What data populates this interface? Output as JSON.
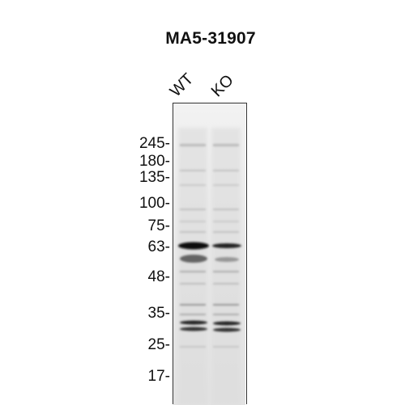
{
  "title": "MA5-31907",
  "lanes": [
    "WT",
    "KO"
  ],
  "markers": [
    {
      "label": "245-",
      "kda": 245
    },
    {
      "label": "180-",
      "kda": 180
    },
    {
      "label": "135-",
      "kda": 135
    },
    {
      "label": "100-",
      "kda": 100
    },
    {
      "label": "75-",
      "kda": 75
    },
    {
      "label": "63-",
      "kda": 63
    },
    {
      "label": "48-",
      "kda": 48
    },
    {
      "label": "35-",
      "kda": 35
    },
    {
      "label": "25-",
      "kda": 25
    },
    {
      "label": "17-",
      "kda": 17
    }
  ],
  "colors": {
    "band": "#1a1a1a",
    "background": "#ededed"
  }
}
